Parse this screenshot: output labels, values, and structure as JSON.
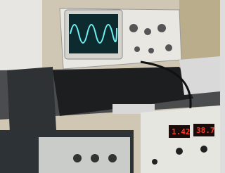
{
  "displays": [
    {
      "reading": "1.42"
    },
    {
      "reading": "38.7"
    }
  ]
}
